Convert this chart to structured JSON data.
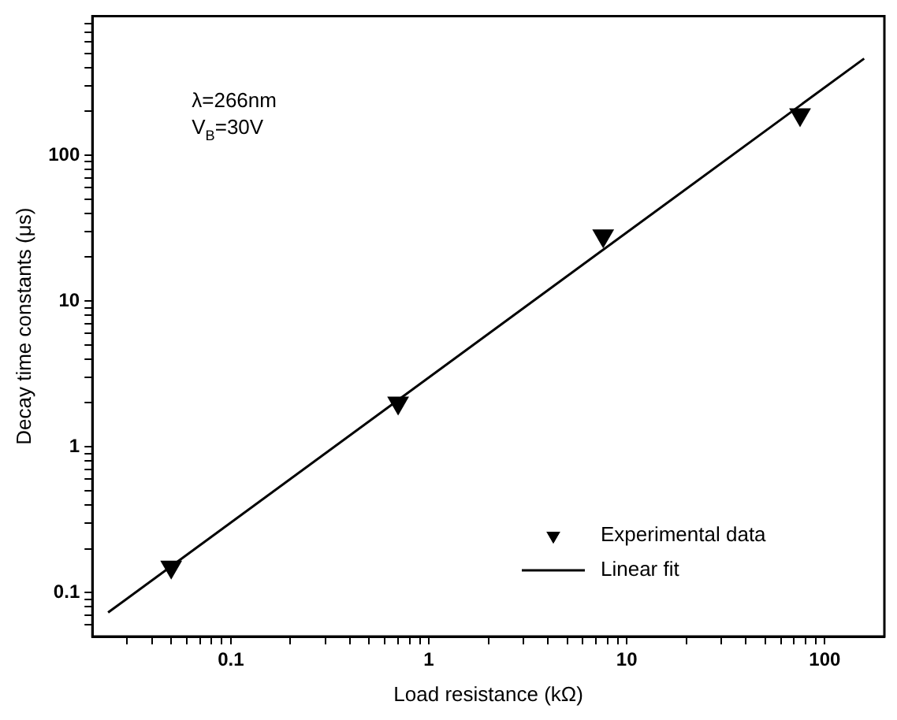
{
  "chart_data": {
    "type": "scatter",
    "xlabel": "Load resistance (kΩ)",
    "ylabel": "Decay time constants (μs)",
    "log": "xy",
    "grid": false,
    "legend": "bottom right",
    "xlim": [
      0.02,
      200
    ],
    "ylim": [
      0.05,
      900
    ],
    "xticks": [
      {
        "value": 0.03,
        "label": null
      },
      {
        "value": 0.04,
        "label": null
      },
      {
        "value": 0.05,
        "label": null
      },
      {
        "value": 0.06,
        "label": null
      },
      {
        "value": 0.07,
        "label": null
      },
      {
        "value": 0.08,
        "label": null
      },
      {
        "value": 0.09,
        "label": null
      },
      0.1,
      {
        "value": 0.2,
        "label": null
      },
      {
        "value": 0.3,
        "label": null
      },
      {
        "value": 0.4,
        "label": null
      },
      {
        "value": 0.5,
        "label": null
      },
      {
        "value": 0.6,
        "label": null
      },
      {
        "value": 0.7,
        "label": null
      },
      {
        "value": 0.8,
        "label": null
      },
      {
        "value": 0.9,
        "label": null
      },
      1,
      {
        "value": 2,
        "label": null
      },
      {
        "value": 3,
        "label": null
      },
      {
        "value": 4,
        "label": null
      },
      {
        "value": 5,
        "label": null
      },
      {
        "value": 6,
        "label": null
      },
      {
        "value": 7,
        "label": null
      },
      {
        "value": 8,
        "label": null
      },
      {
        "value": 9,
        "label": null
      },
      10,
      {
        "value": 20,
        "label": null
      },
      {
        "value": 30,
        "label": null
      },
      {
        "value": 40,
        "label": null
      },
      {
        "value": 50,
        "label": null
      },
      {
        "value": 60,
        "label": null
      },
      {
        "value": 70,
        "label": null
      },
      {
        "value": 80,
        "label": null
      },
      {
        "value": 90,
        "label": null
      },
      100
    ],
    "yticks": [
      {
        "value": 0.06,
        "label": null
      },
      {
        "value": 0.07,
        "label": null
      },
      {
        "value": 0.08,
        "label": null
      },
      {
        "value": 0.09,
        "label": null
      },
      0.1,
      {
        "value": 0.2,
        "label": null
      },
      {
        "value": 0.3,
        "label": null
      },
      {
        "value": 0.4,
        "label": null
      },
      {
        "value": 0.5,
        "label": null
      },
      {
        "value": 0.6,
        "label": null
      },
      {
        "value": 0.7,
        "label": null
      },
      {
        "value": 0.8,
        "label": null
      },
      {
        "value": 0.9,
        "label": null
      },
      1,
      {
        "value": 2,
        "label": null
      },
      {
        "value": 3,
        "label": null
      },
      {
        "value": 4,
        "label": null
      },
      {
        "value": 5,
        "label": null
      },
      {
        "value": 6,
        "label": null
      },
      {
        "value": 7,
        "label": null
      },
      {
        "value": 8,
        "label": null
      },
      {
        "value": 9,
        "label": null
      },
      10,
      {
        "value": 20,
        "label": null
      },
      {
        "value": 30,
        "label": null
      },
      {
        "value": 40,
        "label": null
      },
      {
        "value": 50,
        "label": null
      },
      {
        "value": 60,
        "label": null
      },
      {
        "value": 70,
        "label": null
      },
      {
        "value": 80,
        "label": null
      },
      {
        "value": 90,
        "label": null
      },
      100,
      {
        "value": 200,
        "label": null
      },
      {
        "value": 300,
        "label": null
      },
      {
        "value": 400,
        "label": null
      },
      {
        "value": 500,
        "label": null
      },
      {
        "value": 600,
        "label": null
      },
      {
        "value": 700,
        "label": null
      },
      {
        "value": 800,
        "label": null
      }
    ],
    "annotations": [
      "λ=266nm",
      "V$_{B}$=30V"
    ],
    "series": [
      {
        "name": "Experimental data",
        "type": "scatter",
        "marker": "triangle",
        "color": "#000000",
        "x": [
          0.05,
          0.7,
          7.6,
          75
        ],
        "values": [
          0.15,
          2,
          28,
          190
        ]
      },
      {
        "name": "Linear fit",
        "type": "line",
        "marker": "none",
        "line_style": "solid",
        "color": "#000000",
        "x": [
          0.024,
          158
        ],
        "values": [
          0.073,
          460
        ]
      }
    ]
  }
}
